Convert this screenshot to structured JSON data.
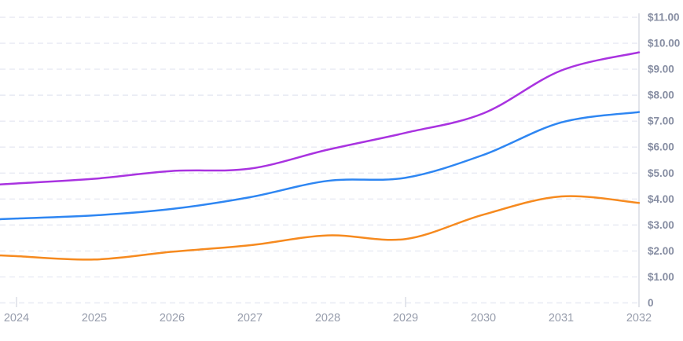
{
  "chart_data": {
    "type": "line",
    "title": "",
    "xlabel": "",
    "ylabel": "",
    "x": [
      2024,
      2025,
      2026,
      2027,
      2028,
      2029,
      2030,
      2031,
      2032
    ],
    "x_tick_labels": [
      "2024",
      "2025",
      "2026",
      "2027",
      "2028",
      "2029",
      "2030",
      "2031",
      "2032"
    ],
    "y_tick_labels": [
      "$11.00",
      "$10.00",
      "$9.00",
      "$8.00",
      "$7.00",
      "$6.00",
      "$5.00",
      "$4.00",
      "$3.00",
      "$2.00",
      "$1.00",
      "0"
    ],
    "y_tick_values": [
      11,
      10,
      9,
      8,
      7,
      6,
      5,
      4,
      3,
      2,
      1,
      0
    ],
    "ylim": [
      0,
      11
    ],
    "y_axis_side": "right",
    "legend_position": "none",
    "grid": "horizontal-dashed",
    "colors": {
      "grid": "#e8eaf3",
      "axis": "#d8dbe4",
      "y_label_text": "#868da2",
      "x_label_text": "#979dac"
    },
    "series": [
      {
        "name": "purple",
        "color": "#a933e0",
        "values": [
          4.6,
          4.78,
          5.08,
          5.17,
          5.9,
          6.55,
          7.3,
          8.95,
          9.65
        ]
      },
      {
        "name": "blue",
        "color": "#2e86f2",
        "values": [
          3.25,
          3.37,
          3.62,
          4.07,
          4.7,
          4.82,
          5.7,
          6.95,
          7.35
        ]
      },
      {
        "name": "orange",
        "color": "#f68a1f",
        "values": [
          1.8,
          1.67,
          1.97,
          2.22,
          2.6,
          2.46,
          3.4,
          4.1,
          3.85
        ]
      }
    ],
    "x_minor_ticks_shown_at": [
      2024,
      2029
    ]
  }
}
